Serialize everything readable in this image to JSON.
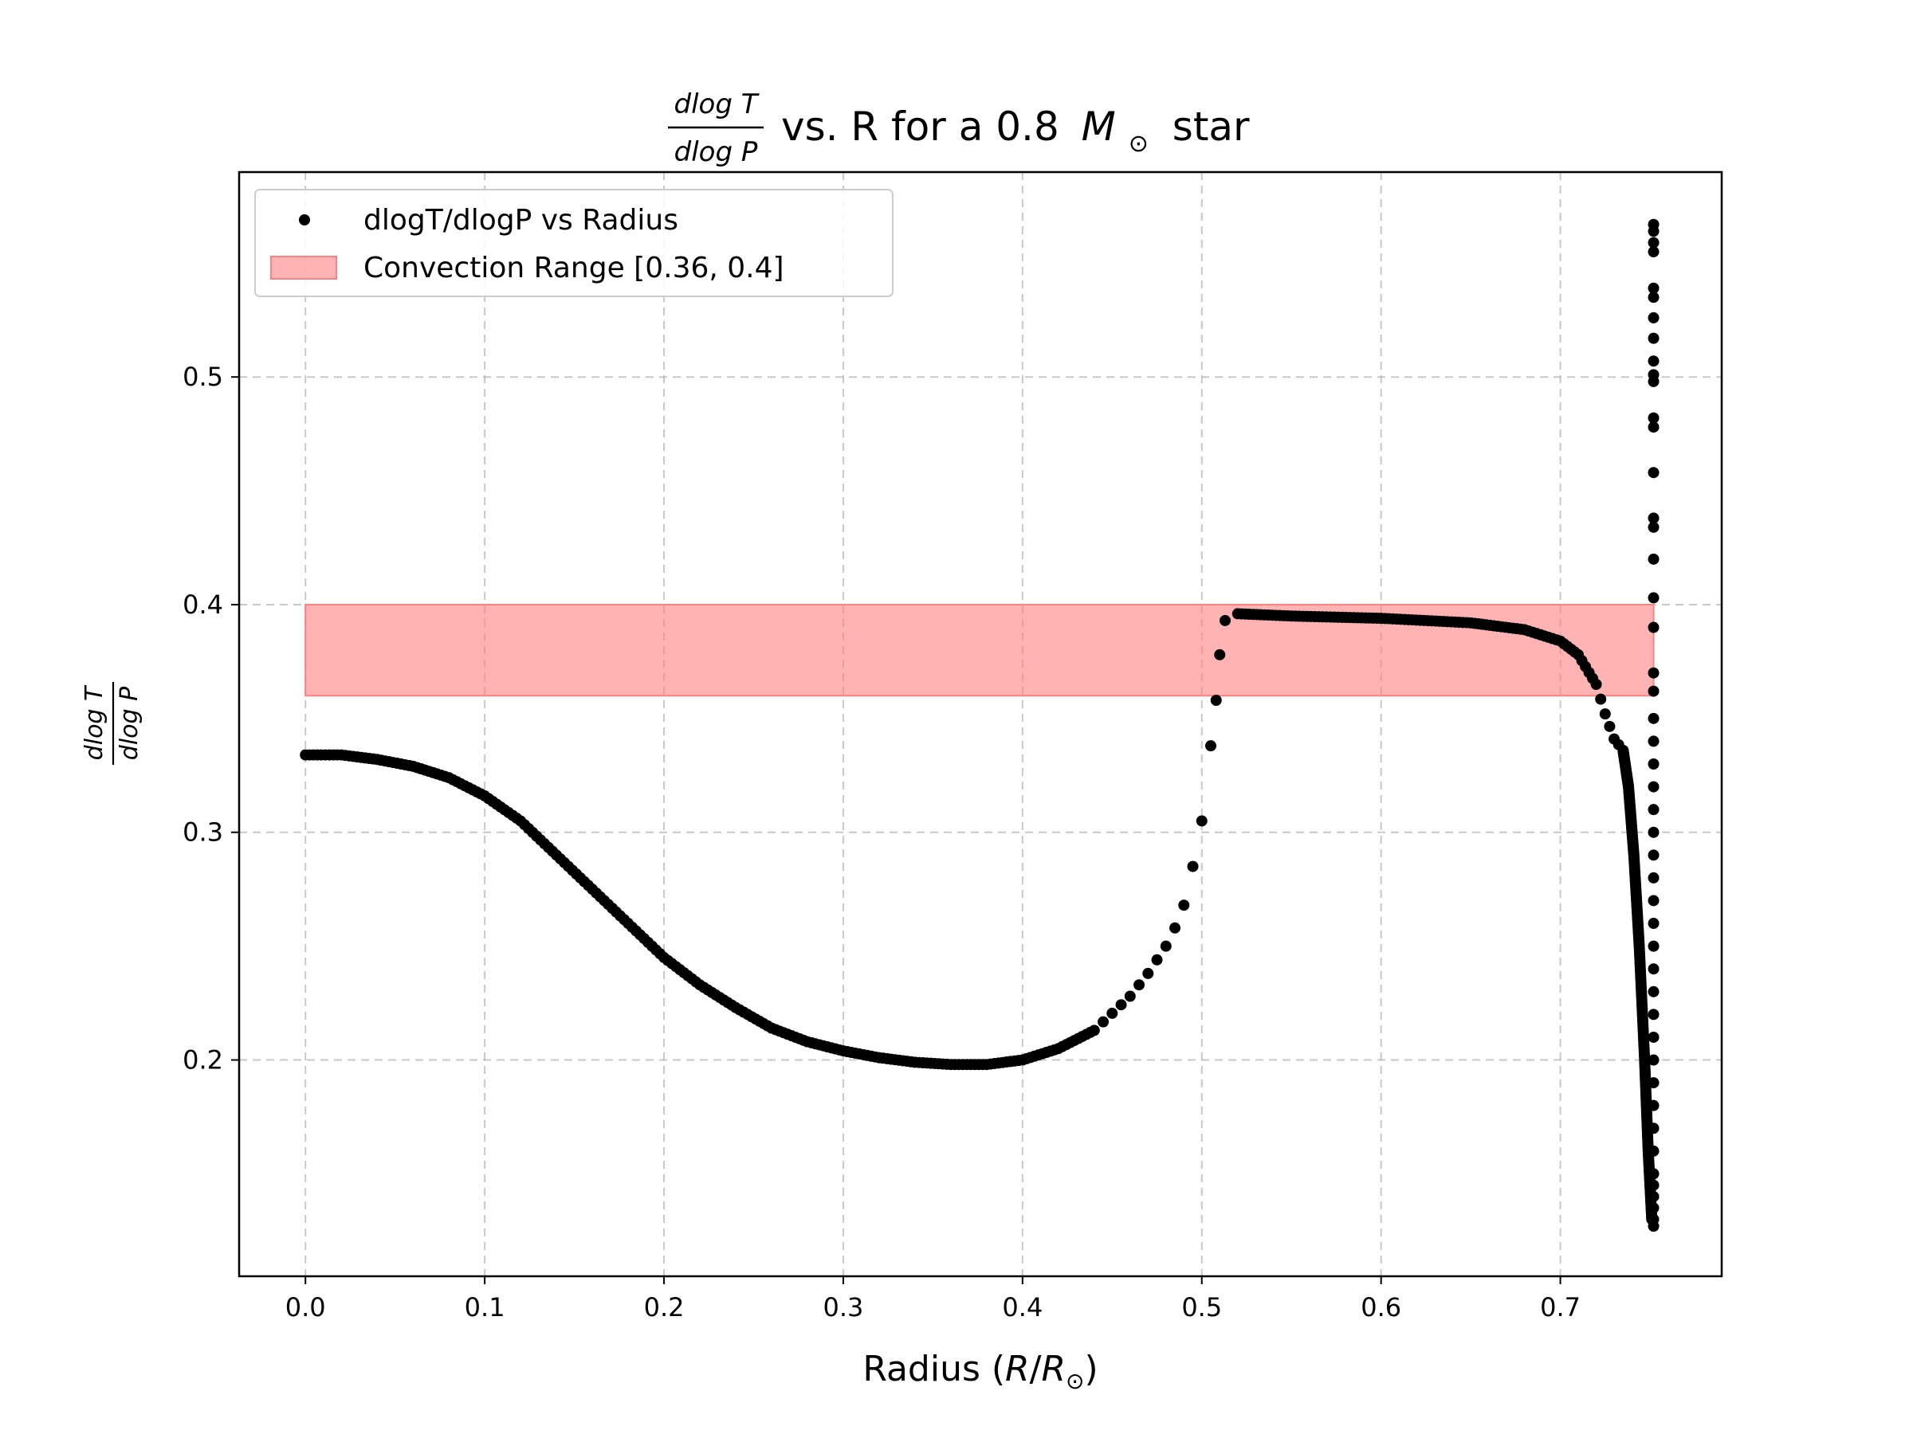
{
  "chart_data": {
    "type": "scatter",
    "title": {
      "numerator": "dlog T",
      "denominator": "dlog P",
      "text": "vs. R for a 0.8",
      "mass_symbol": "M",
      "sun_symbol": "⊙",
      "suffix": "star"
    },
    "xlabel": {
      "text": "Radius (",
      "var": "R",
      "slash": "/",
      "var2": "R",
      "sun": "⊙",
      "close": ")"
    },
    "ylabel": {
      "numerator": "dlog T",
      "denominator": "dlog P"
    },
    "xlim": [
      -0.037,
      0.79
    ],
    "ylim": [
      0.105,
      0.59
    ],
    "x_ticks": [
      0.0,
      0.1,
      0.2,
      0.3,
      0.4,
      0.5,
      0.6,
      0.7
    ],
    "x_tick_labels": [
      "0.0",
      "0.1",
      "0.2",
      "0.3",
      "0.4",
      "0.5",
      "0.6",
      "0.7"
    ],
    "y_ticks": [
      0.2,
      0.3,
      0.4,
      0.5
    ],
    "y_tick_labels": [
      "0.2",
      "0.3",
      "0.4",
      "0.5"
    ],
    "grid": true,
    "legend_position": "upper-left",
    "band": {
      "name": "Convection Range [0.36, 0.4]",
      "y_min": 0.36,
      "y_max": 0.4,
      "x_min": 0.0,
      "x_max": 0.752,
      "color": "#ff8080"
    },
    "series": [
      {
        "name": "dlogT/dlogP vs Radius",
        "color": "#000000",
        "curve_points": [
          [
            0.0,
            0.334
          ],
          [
            0.02,
            0.334
          ],
          [
            0.04,
            0.332
          ],
          [
            0.06,
            0.329
          ],
          [
            0.08,
            0.324
          ],
          [
            0.1,
            0.316
          ],
          [
            0.12,
            0.305
          ],
          [
            0.14,
            0.29
          ],
          [
            0.16,
            0.275
          ],
          [
            0.18,
            0.26
          ],
          [
            0.2,
            0.245
          ],
          [
            0.22,
            0.233
          ],
          [
            0.24,
            0.223
          ],
          [
            0.26,
            0.214
          ],
          [
            0.28,
            0.208
          ],
          [
            0.3,
            0.204
          ],
          [
            0.32,
            0.201
          ],
          [
            0.34,
            0.199
          ],
          [
            0.36,
            0.198
          ],
          [
            0.38,
            0.198
          ],
          [
            0.4,
            0.2
          ],
          [
            0.42,
            0.205
          ],
          [
            0.44,
            0.213
          ],
          [
            0.46,
            0.228
          ],
          [
            0.47,
            0.238
          ],
          [
            0.48,
            0.25
          ],
          [
            0.485,
            0.258
          ],
          [
            0.49,
            0.268
          ],
          [
            0.495,
            0.285
          ],
          [
            0.5,
            0.305
          ],
          [
            0.505,
            0.338
          ],
          [
            0.508,
            0.358
          ],
          [
            0.51,
            0.378
          ],
          [
            0.513,
            0.393
          ],
          [
            0.52,
            0.396
          ],
          [
            0.55,
            0.395
          ],
          [
            0.6,
            0.394
          ],
          [
            0.65,
            0.392
          ],
          [
            0.68,
            0.389
          ],
          [
            0.7,
            0.384
          ],
          [
            0.71,
            0.378
          ],
          [
            0.72,
            0.365
          ],
          [
            0.725,
            0.352
          ],
          [
            0.73,
            0.341
          ],
          [
            0.735,
            0.336
          ],
          [
            0.738,
            0.32
          ],
          [
            0.741,
            0.29
          ],
          [
            0.744,
            0.25
          ],
          [
            0.747,
            0.2
          ],
          [
            0.749,
            0.16
          ],
          [
            0.751,
            0.13
          ]
        ],
        "edge_points": [
          0.127,
          0.13,
          0.135,
          0.14,
          0.145,
          0.15,
          0.16,
          0.17,
          0.18,
          0.19,
          0.2,
          0.21,
          0.22,
          0.23,
          0.24,
          0.25,
          0.26,
          0.27,
          0.28,
          0.29,
          0.3,
          0.31,
          0.32,
          0.33,
          0.34,
          0.35,
          0.362,
          0.37,
          0.39,
          0.403,
          0.42,
          0.434,
          0.438,
          0.458,
          0.478,
          0.482,
          0.498,
          0.501,
          0.507,
          0.517,
          0.526,
          0.535,
          0.539,
          0.555,
          0.559,
          0.564,
          0.567
        ],
        "edge_x": 0.752
      }
    ]
  }
}
